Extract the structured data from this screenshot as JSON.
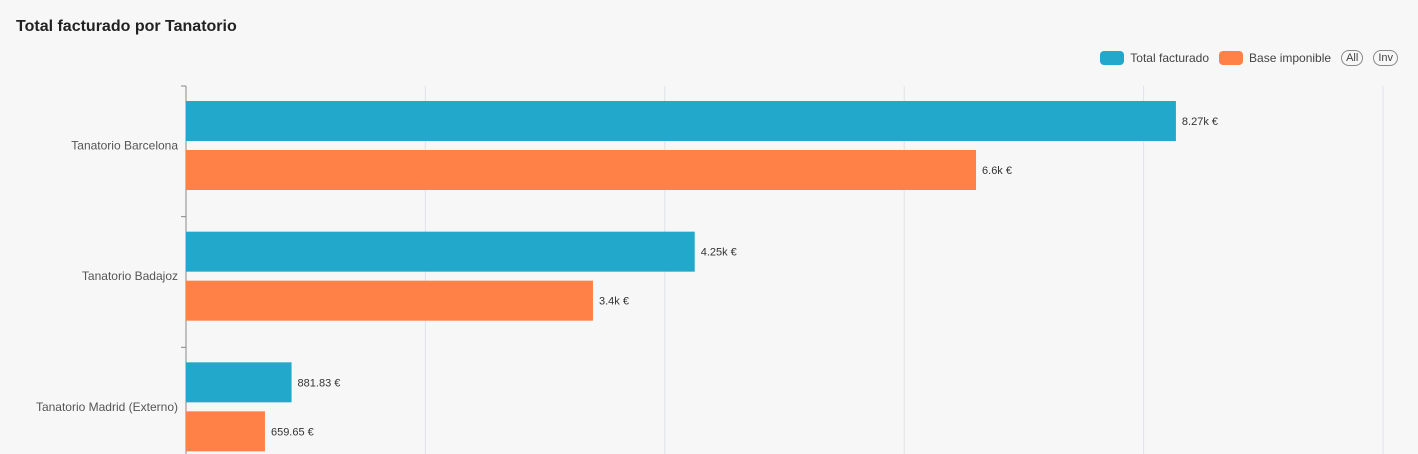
{
  "header": {
    "title": "Total facturado por Tanatorio"
  },
  "legend": {
    "all_label": "All",
    "inv_label": "Inv"
  },
  "colors": {
    "total": "#21a8cb",
    "base": "#ff8148"
  },
  "chart_data": {
    "type": "bar",
    "orientation": "horizontal",
    "title": "Total facturado por Tanatorio",
    "categories": [
      "Tanatorio Barcelona",
      "Tanatorio Badajoz",
      "Tanatorio Madrid (Externo)"
    ],
    "series": [
      {
        "name": "Total facturado",
        "values": [
          8270,
          4250,
          881.83
        ],
        "labels": [
          "8.27k €",
          "4.25k €",
          "881.83 €"
        ]
      },
      {
        "name": "Base imponible",
        "values": [
          6600,
          3400,
          659.65
        ],
        "labels": [
          "6.6k €",
          "3.4k €",
          "659.65 €"
        ]
      }
    ],
    "xlim": [
      0,
      10000
    ],
    "grid": true,
    "legend_position": "top-right"
  }
}
